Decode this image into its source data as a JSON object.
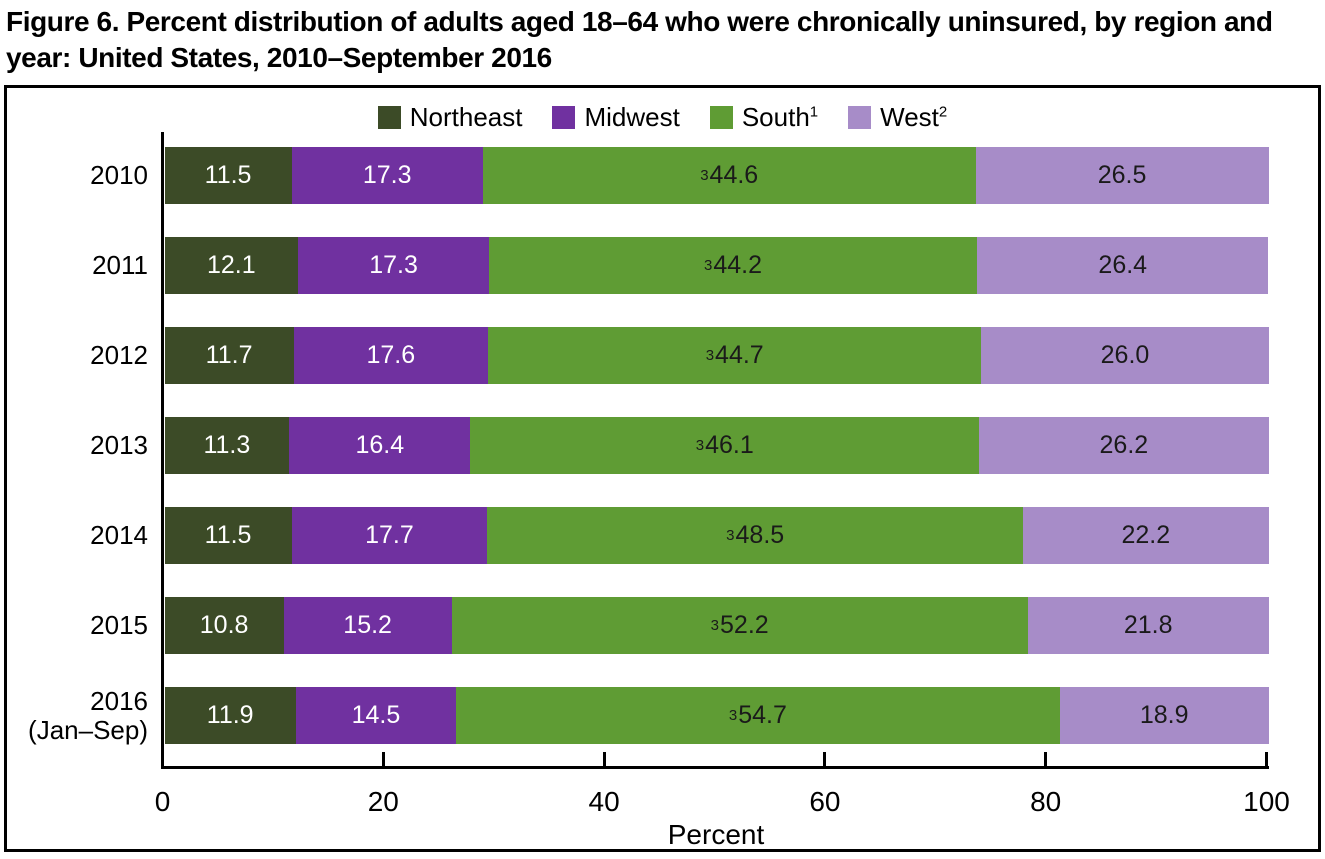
{
  "title": "Figure 6. Percent distribution of adults aged 18–64 who were chronically uninsured, by region and year: United States, 2010–September 2016",
  "colors": {
    "border": "#000000",
    "axis": "#000000",
    "northeast": "#3C4B27",
    "midwest": "#7031A0",
    "south": "#5F9C34",
    "west": "#A78CC8",
    "value_text_light": "#FFFFFF",
    "value_text_dark": "#1A1A1A"
  },
  "chart_data": {
    "type": "bar",
    "variant": "stacked-horizontal",
    "title": "Figure 6. Percent distribution of adults aged 18–64 who were chronically uninsured, by region and year: United States, 2010–September 2016",
    "xlabel": "Percent",
    "xlim": [
      0,
      100
    ],
    "xticks": [
      0,
      20,
      40,
      60,
      80,
      100
    ],
    "grid": false,
    "legend_position": "top-center",
    "categories": [
      "2010",
      "2011",
      "2012",
      "2013",
      "2014",
      "2015",
      "2016\n(Jan–Sep)"
    ],
    "series": [
      {
        "name": "Northeast",
        "legend_superscript": "",
        "color": "#3C4B27",
        "label_color": "#FFFFFF",
        "value_superscript": "",
        "values": [
          11.5,
          12.1,
          11.7,
          11.3,
          11.5,
          10.8,
          11.9
        ]
      },
      {
        "name": "Midwest",
        "legend_superscript": "",
        "color": "#7031A0",
        "label_color": "#FFFFFF",
        "value_superscript": "",
        "values": [
          17.3,
          17.3,
          17.6,
          16.4,
          17.7,
          15.2,
          14.5
        ]
      },
      {
        "name": "South",
        "legend_superscript": "1",
        "color": "#5F9C34",
        "label_color": "#1A1A1A",
        "value_superscript": "3",
        "values": [
          44.6,
          44.2,
          44.7,
          46.1,
          48.5,
          52.2,
          54.7
        ]
      },
      {
        "name": "West",
        "legend_superscript": "2",
        "color": "#A78CC8",
        "label_color": "#1A1A1A",
        "value_superscript": "",
        "values": [
          26.5,
          26.4,
          26.0,
          26.2,
          22.2,
          21.8,
          18.9
        ]
      }
    ]
  }
}
